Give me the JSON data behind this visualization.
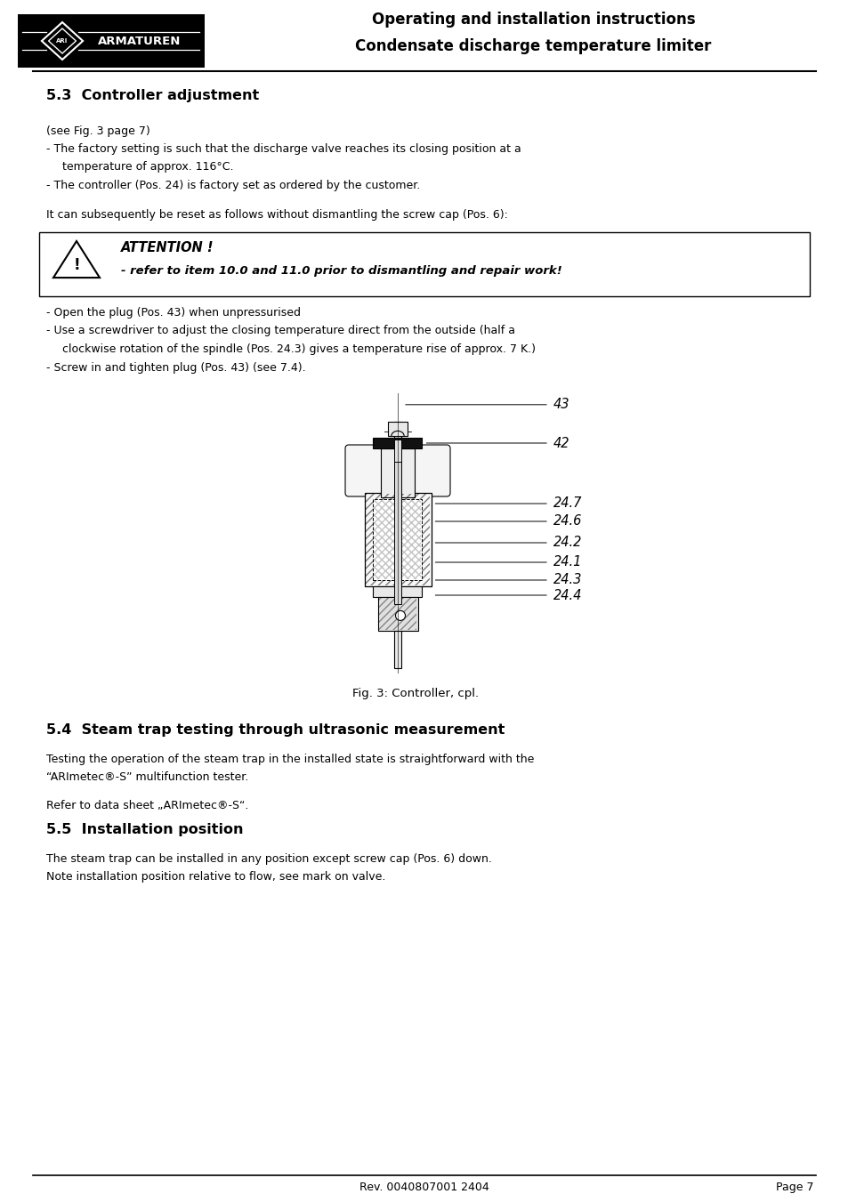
{
  "page_width": 9.54,
  "page_height": 13.51,
  "bg_color": "#ffffff",
  "header_title1": "Operating and installation instructions",
  "header_title2": "Condensate discharge temperature limiter",
  "section_53_title": "5.3  Controller adjustment",
  "text_see_fig": "(see Fig. 3 page 7)",
  "text_factory1a": "- The factory setting is such that the discharge valve reaches its closing position at a",
  "text_factory1b": "  temperature of approx. 116°C.",
  "text_factory2": "- The controller (Pos. 24) is factory set as ordered by the customer.",
  "text_reset": "It can subsequently be reset as follows without dismantling the screw cap (Pos. 6):",
  "attention_title": "ATTENTION !",
  "attention_body": "- refer to item 10.0 and 11.0 prior to dismantling and repair work!",
  "bullet1": "- Open the plug (Pos. 43) when unpressurised",
  "bullet2a": "- Use a screwdriver to adjust the closing temperature direct from the outside (half a",
  "bullet2b": "  clockwise rotation of the spindle (Pos. 24.3) gives a temperature rise of approx. 7 K.)",
  "bullet3": "- Screw in and tighten plug (Pos. 43) (see 7.4).",
  "fig_caption": "Fig. 3: Controller, cpl.",
  "section_54_title": "5.4  Steam trap testing through ultrasonic measurement",
  "text_54_1": "Testing the operation of the steam trap in the installed state is straightforward with the",
  "text_54_2": "“ARImetec®-S” multifunction tester.",
  "text_54_3": "Refer to data sheet „ARImetec®-S“.",
  "section_55_title": "5.5  Installation position",
  "text_55_1": "The steam trap can be installed in any position except screw cap (Pos. 6) down.",
  "text_55_2": "Note installation position relative to flow, see mark on valve.",
  "footer_left": "Rev. 0040807001 2404",
  "footer_right": "Page 7",
  "ml": 0.52,
  "mr": 9.02,
  "line_color": "#000000",
  "text_color": "#000000",
  "hatch_color": "#555555"
}
